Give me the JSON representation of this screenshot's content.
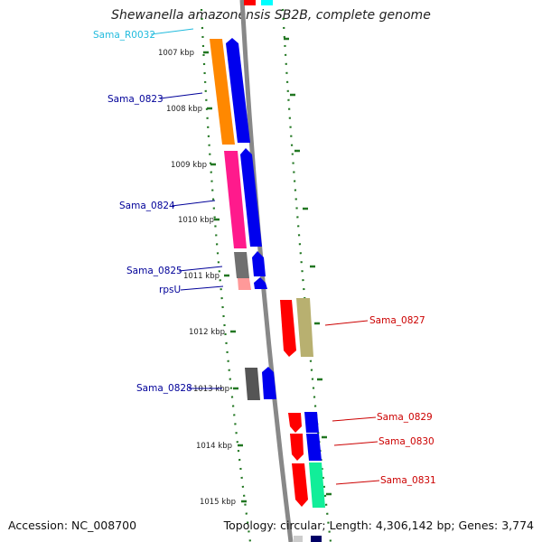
{
  "title": "Shewanella amazonensis SB2B, complete genome",
  "footer": {
    "accession": "Accession: NC_008700",
    "topology": "Topology: circular; Length: 4,306,142 bp; Genes: 3,774"
  },
  "colors": {
    "backbone": "#888888",
    "tick": "#227722",
    "label_left": "#000099",
    "label_right": "#cc0000",
    "label_rna": "#22bbdd"
  },
  "scale_labels": [
    "1007 kbp",
    "1008 kbp",
    "1009 kbp",
    "1010 kbp",
    "1011 kbp",
    "1012 kbp",
    "1013 kbp",
    "1014 kbp",
    "1015 kbp"
  ],
  "genes_left": [
    {
      "label": "Sama_R0032",
      "color": "#22bbdd"
    },
    {
      "label": "Sama_0823",
      "color": "#000099"
    },
    {
      "label": "Sama_0824",
      "color": "#000099"
    },
    {
      "label": "Sama_0825",
      "color": "#000099"
    },
    {
      "label": "rpsU",
      "color": "#000099"
    },
    {
      "label": "Sama_0828",
      "color": "#000099"
    }
  ],
  "genes_right": [
    {
      "label": "Sama_0827",
      "color": "#cc0000"
    },
    {
      "label": "Sama_0829",
      "color": "#cc0000"
    },
    {
      "label": "Sama_0830",
      "color": "#cc0000"
    },
    {
      "label": "Sama_0831",
      "color": "#cc0000"
    }
  ]
}
